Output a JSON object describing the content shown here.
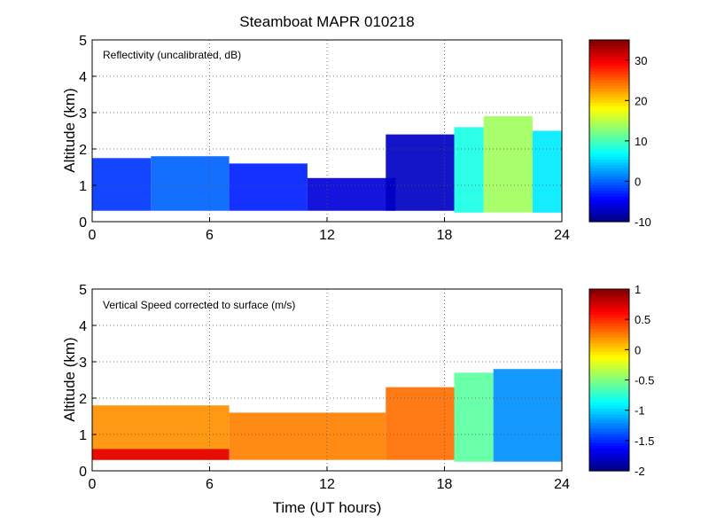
{
  "figure": {
    "title": "Steamboat MAPR 010218",
    "xlabel": "Time (UT hours)"
  },
  "chart_data": [
    {
      "type": "heatmap",
      "annotation": "Reflectivity (uncalibrated, dB)",
      "ylabel": "Altitude (km)",
      "x_ticks": [
        0,
        6,
        12,
        18,
        24
      ],
      "y_ticks": [
        0,
        1,
        2,
        3,
        4,
        5
      ],
      "xlim": [
        0,
        24
      ],
      "ylim": [
        0,
        5
      ],
      "grid": "dotted",
      "colorbar": {
        "range": [
          -10,
          35
        ],
        "ticks": [
          -10,
          0,
          10,
          20,
          30
        ]
      },
      "regions": [
        {
          "t0": 0.0,
          "t1": 3.0,
          "z0": 0.3,
          "z1": 1.75,
          "value": -2
        },
        {
          "t0": 3.0,
          "t1": 7.0,
          "z0": 0.3,
          "z1": 1.8,
          "value": 0
        },
        {
          "t0": 7.0,
          "t1": 11.0,
          "z0": 0.3,
          "z1": 1.6,
          "value": -3
        },
        {
          "t0": 11.0,
          "t1": 15.5,
          "z0": 0.3,
          "z1": 1.2,
          "value": -6
        },
        {
          "t0": 15.0,
          "t1": 18.5,
          "z0": 0.3,
          "z1": 2.4,
          "value": -7
        },
        {
          "t0": 18.5,
          "t1": 20.0,
          "z0": 0.25,
          "z1": 2.6,
          "value": 8
        },
        {
          "t0": 20.0,
          "t1": 22.5,
          "z0": 0.25,
          "z1": 2.9,
          "value": 14
        },
        {
          "t0": 22.5,
          "t1": 24.0,
          "z0": 0.25,
          "z1": 2.5,
          "value": 6
        }
      ]
    },
    {
      "type": "heatmap",
      "annotation": "Vertical Speed corrected to surface (m/s)",
      "ylabel": "Altitude (km)",
      "x_ticks": [
        0,
        6,
        12,
        18,
        24
      ],
      "y_ticks": [
        0,
        1,
        2,
        3,
        4,
        5
      ],
      "xlim": [
        0,
        24
      ],
      "ylim": [
        0,
        5
      ],
      "grid": "dotted",
      "colorbar": {
        "range": [
          -2,
          1
        ],
        "ticks": [
          1,
          0.5,
          0,
          -0.5,
          -1,
          -1.5,
          -2
        ]
      },
      "regions": [
        {
          "t0": 0.0,
          "t1": 7.0,
          "z0": 0.3,
          "z1": 1.8,
          "value": 0.2
        },
        {
          "t0": 0.0,
          "t1": 7.0,
          "z0": 0.3,
          "z1": 0.6,
          "value": 0.7
        },
        {
          "t0": 7.0,
          "t1": 15.0,
          "z0": 0.3,
          "z1": 1.6,
          "value": 0.25
        },
        {
          "t0": 15.0,
          "t1": 18.5,
          "z0": 0.3,
          "z1": 2.3,
          "value": 0.3
        },
        {
          "t0": 18.5,
          "t1": 20.5,
          "z0": 0.25,
          "z1": 2.7,
          "value": -0.6
        },
        {
          "t0": 20.5,
          "t1": 24.0,
          "z0": 0.25,
          "z1": 2.8,
          "value": -1.2
        }
      ]
    }
  ]
}
